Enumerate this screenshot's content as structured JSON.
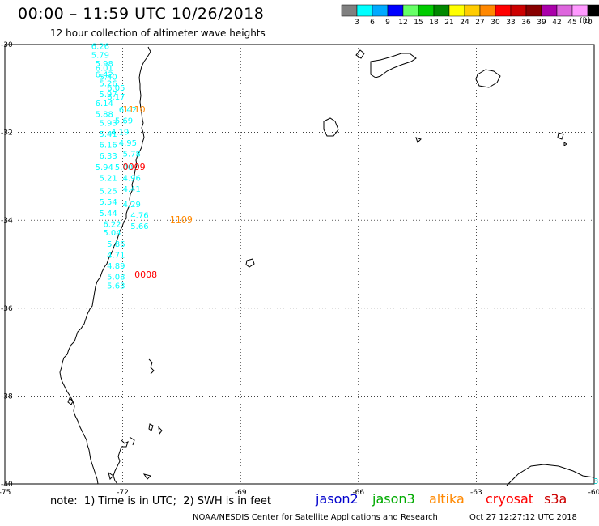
{
  "header": {
    "title": "00:00 – 11:59 UTC 10/26/2018",
    "subtitle": "12 hour collection of altimeter wave heights"
  },
  "color_scale": {
    "unit": "(ft)",
    "bins": [
      {
        "label": "3",
        "color": "#808080"
      },
      {
        "label": "6",
        "color": "#00ffff"
      },
      {
        "label": "9",
        "color": "#00aaff"
      },
      {
        "label": "12",
        "color": "#0000ff"
      },
      {
        "label": "15",
        "color": "#66ff66"
      },
      {
        "label": "18",
        "color": "#00cc00"
      },
      {
        "label": "21",
        "color": "#008800"
      },
      {
        "label": "24",
        "color": "#ffff00"
      },
      {
        "label": "27",
        "color": "#ffcc00"
      },
      {
        "label": "30",
        "color": "#ff8800"
      },
      {
        "label": "33",
        "color": "#ff0000"
      },
      {
        "label": "36",
        "color": "#cc0000"
      },
      {
        "label": "39",
        "color": "#880000"
      },
      {
        "label": "42",
        "color": "#aa00aa"
      },
      {
        "label": "45",
        "color": "#dd66dd"
      },
      {
        "label": "70",
        "color": "#ff99ff"
      },
      {
        "label": "",
        "color": "#000000"
      }
    ]
  },
  "map": {
    "lat_labels": [
      "-30",
      "-32",
      "-34",
      "-36",
      "-38",
      "-40"
    ],
    "lon_labels": [
      "-75",
      "-72",
      "-69",
      "-66",
      "-63",
      "-60"
    ],
    "observations": [
      {
        "lon": -72.8,
        "lat": -30.1,
        "text": "6.26",
        "color": "#00ffff"
      },
      {
        "lon": -72.8,
        "lat": -30.3,
        "text": "5.79",
        "color": "#00ffff"
      },
      {
        "lon": -72.7,
        "lat": -30.5,
        "text": "5.98",
        "color": "#00ffff"
      },
      {
        "lon": -72.7,
        "lat": -30.6,
        "text": "6.01",
        "color": "#00ffff"
      },
      {
        "lon": -72.6,
        "lat": -30.8,
        "text": "5.40",
        "color": "#00ffff"
      },
      {
        "lon": -72.7,
        "lat": -30.75,
        "text": "6.42",
        "color": "#00ffff"
      },
      {
        "lon": -72.6,
        "lat": -30.95,
        "text": "5.26",
        "color": "#00ffff"
      },
      {
        "lon": -72.4,
        "lat": -31.05,
        "text": "6.05",
        "color": "#00ffff"
      },
      {
        "lon": -72.6,
        "lat": -31.2,
        "text": "5.97",
        "color": "#00ffff"
      },
      {
        "lon": -72.4,
        "lat": -31.25,
        "text": "6.17",
        "color": "#00ffff"
      },
      {
        "lon": -72.7,
        "lat": -31.4,
        "text": "6.14",
        "color": "#00ffff"
      },
      {
        "lon": -72.1,
        "lat": -31.55,
        "text": "6.42",
        "color": "#00ffff"
      },
      {
        "lon": -72.7,
        "lat": -31.65,
        "text": "5.88",
        "color": "#00ffff"
      },
      {
        "lon": -72.2,
        "lat": -31.8,
        "text": "5.69",
        "color": "#00ffff"
      },
      {
        "lon": -72.6,
        "lat": -31.85,
        "text": "5.93",
        "color": "#00ffff"
      },
      {
        "lon": -72.6,
        "lat": -32.1,
        "text": "5.41",
        "color": "#00ffff"
      },
      {
        "lon": -72.3,
        "lat": -32.05,
        "text": "4.19",
        "color": "#00ffff"
      },
      {
        "lon": -72.6,
        "lat": -32.35,
        "text": "6.16",
        "color": "#00ffff"
      },
      {
        "lon": -72.1,
        "lat": -32.3,
        "text": "4.95",
        "color": "#00ffff"
      },
      {
        "lon": -72.6,
        "lat": -32.6,
        "text": "6.33",
        "color": "#00ffff"
      },
      {
        "lon": -72.0,
        "lat": -32.55,
        "text": "5.78",
        "color": "#00ffff"
      },
      {
        "lon": -72.7,
        "lat": -32.85,
        "text": "5.94",
        "color": "#00ffff"
      },
      {
        "lon": -72.2,
        "lat": -32.85,
        "text": "5.00",
        "color": "#00ffff"
      },
      {
        "lon": -72.6,
        "lat": -33.1,
        "text": "5.21",
        "color": "#00ffff"
      },
      {
        "lon": -72.0,
        "lat": -33.1,
        "text": "4.96",
        "color": "#00ffff"
      },
      {
        "lon": -72.6,
        "lat": -33.4,
        "text": "5.25",
        "color": "#00ffff"
      },
      {
        "lon": -72.0,
        "lat": -33.35,
        "text": "4.41",
        "color": "#00ffff"
      },
      {
        "lon": -72.6,
        "lat": -33.65,
        "text": "5.54",
        "color": "#00ffff"
      },
      {
        "lon": -72.0,
        "lat": -33.7,
        "text": "4.29",
        "color": "#00ffff"
      },
      {
        "lon": -72.6,
        "lat": -33.9,
        "text": "5.44",
        "color": "#00ffff"
      },
      {
        "lon": -71.8,
        "lat": -33.95,
        "text": "4.76",
        "color": "#00ffff"
      },
      {
        "lon": -72.5,
        "lat": -34.15,
        "text": "6.22",
        "color": "#00ffff"
      },
      {
        "lon": -71.8,
        "lat": -34.2,
        "text": "5.66",
        "color": "#00ffff"
      },
      {
        "lon": -72.5,
        "lat": -34.35,
        "text": "5.04",
        "color": "#00ffff"
      },
      {
        "lon": -72.4,
        "lat": -34.6,
        "text": "5.86",
        "color": "#00ffff"
      },
      {
        "lon": -72.4,
        "lat": -34.85,
        "text": "4.71",
        "color": "#00ffff"
      },
      {
        "lon": -72.4,
        "lat": -35.1,
        "text": "4.89",
        "color": "#00ffff"
      },
      {
        "lon": -72.4,
        "lat": -35.35,
        "text": "5.08",
        "color": "#00ffff"
      },
      {
        "lon": -72.4,
        "lat": -35.55,
        "text": "5.63",
        "color": "#00ffff"
      }
    ],
    "pass_times": [
      {
        "lon": -72.0,
        "lat": -31.55,
        "text": "1110",
        "color": "#ff8800"
      },
      {
        "lon": -72.0,
        "lat": -32.85,
        "text": "0009",
        "color": "#ff0000"
      },
      {
        "lon": -70.8,
        "lat": -34.05,
        "text": "1109",
        "color": "#ff8800"
      },
      {
        "lon": -71.7,
        "lat": -35.3,
        "text": "0008",
        "color": "#ff0000"
      }
    ]
  },
  "footer": {
    "note": "note:  1) Time is in UTC;  2) SWH is in feet",
    "satellites": [
      {
        "name": "jason2",
        "color": "#0000cc"
      },
      {
        "name": "jason3",
        "color": "#00aa00"
      },
      {
        "name": "altika",
        "color": "#ff8800"
      },
      {
        "name": "cryosat",
        "color": "#ff0000"
      },
      {
        "name": "s3a",
        "color": "#cc0000"
      }
    ],
    "credit": "NOAA/NESDIS Center for Satellite Applications and Research",
    "timestamp": "Oct 27 12:27:12 UTC 2018",
    "corner_fragment": "3"
  }
}
